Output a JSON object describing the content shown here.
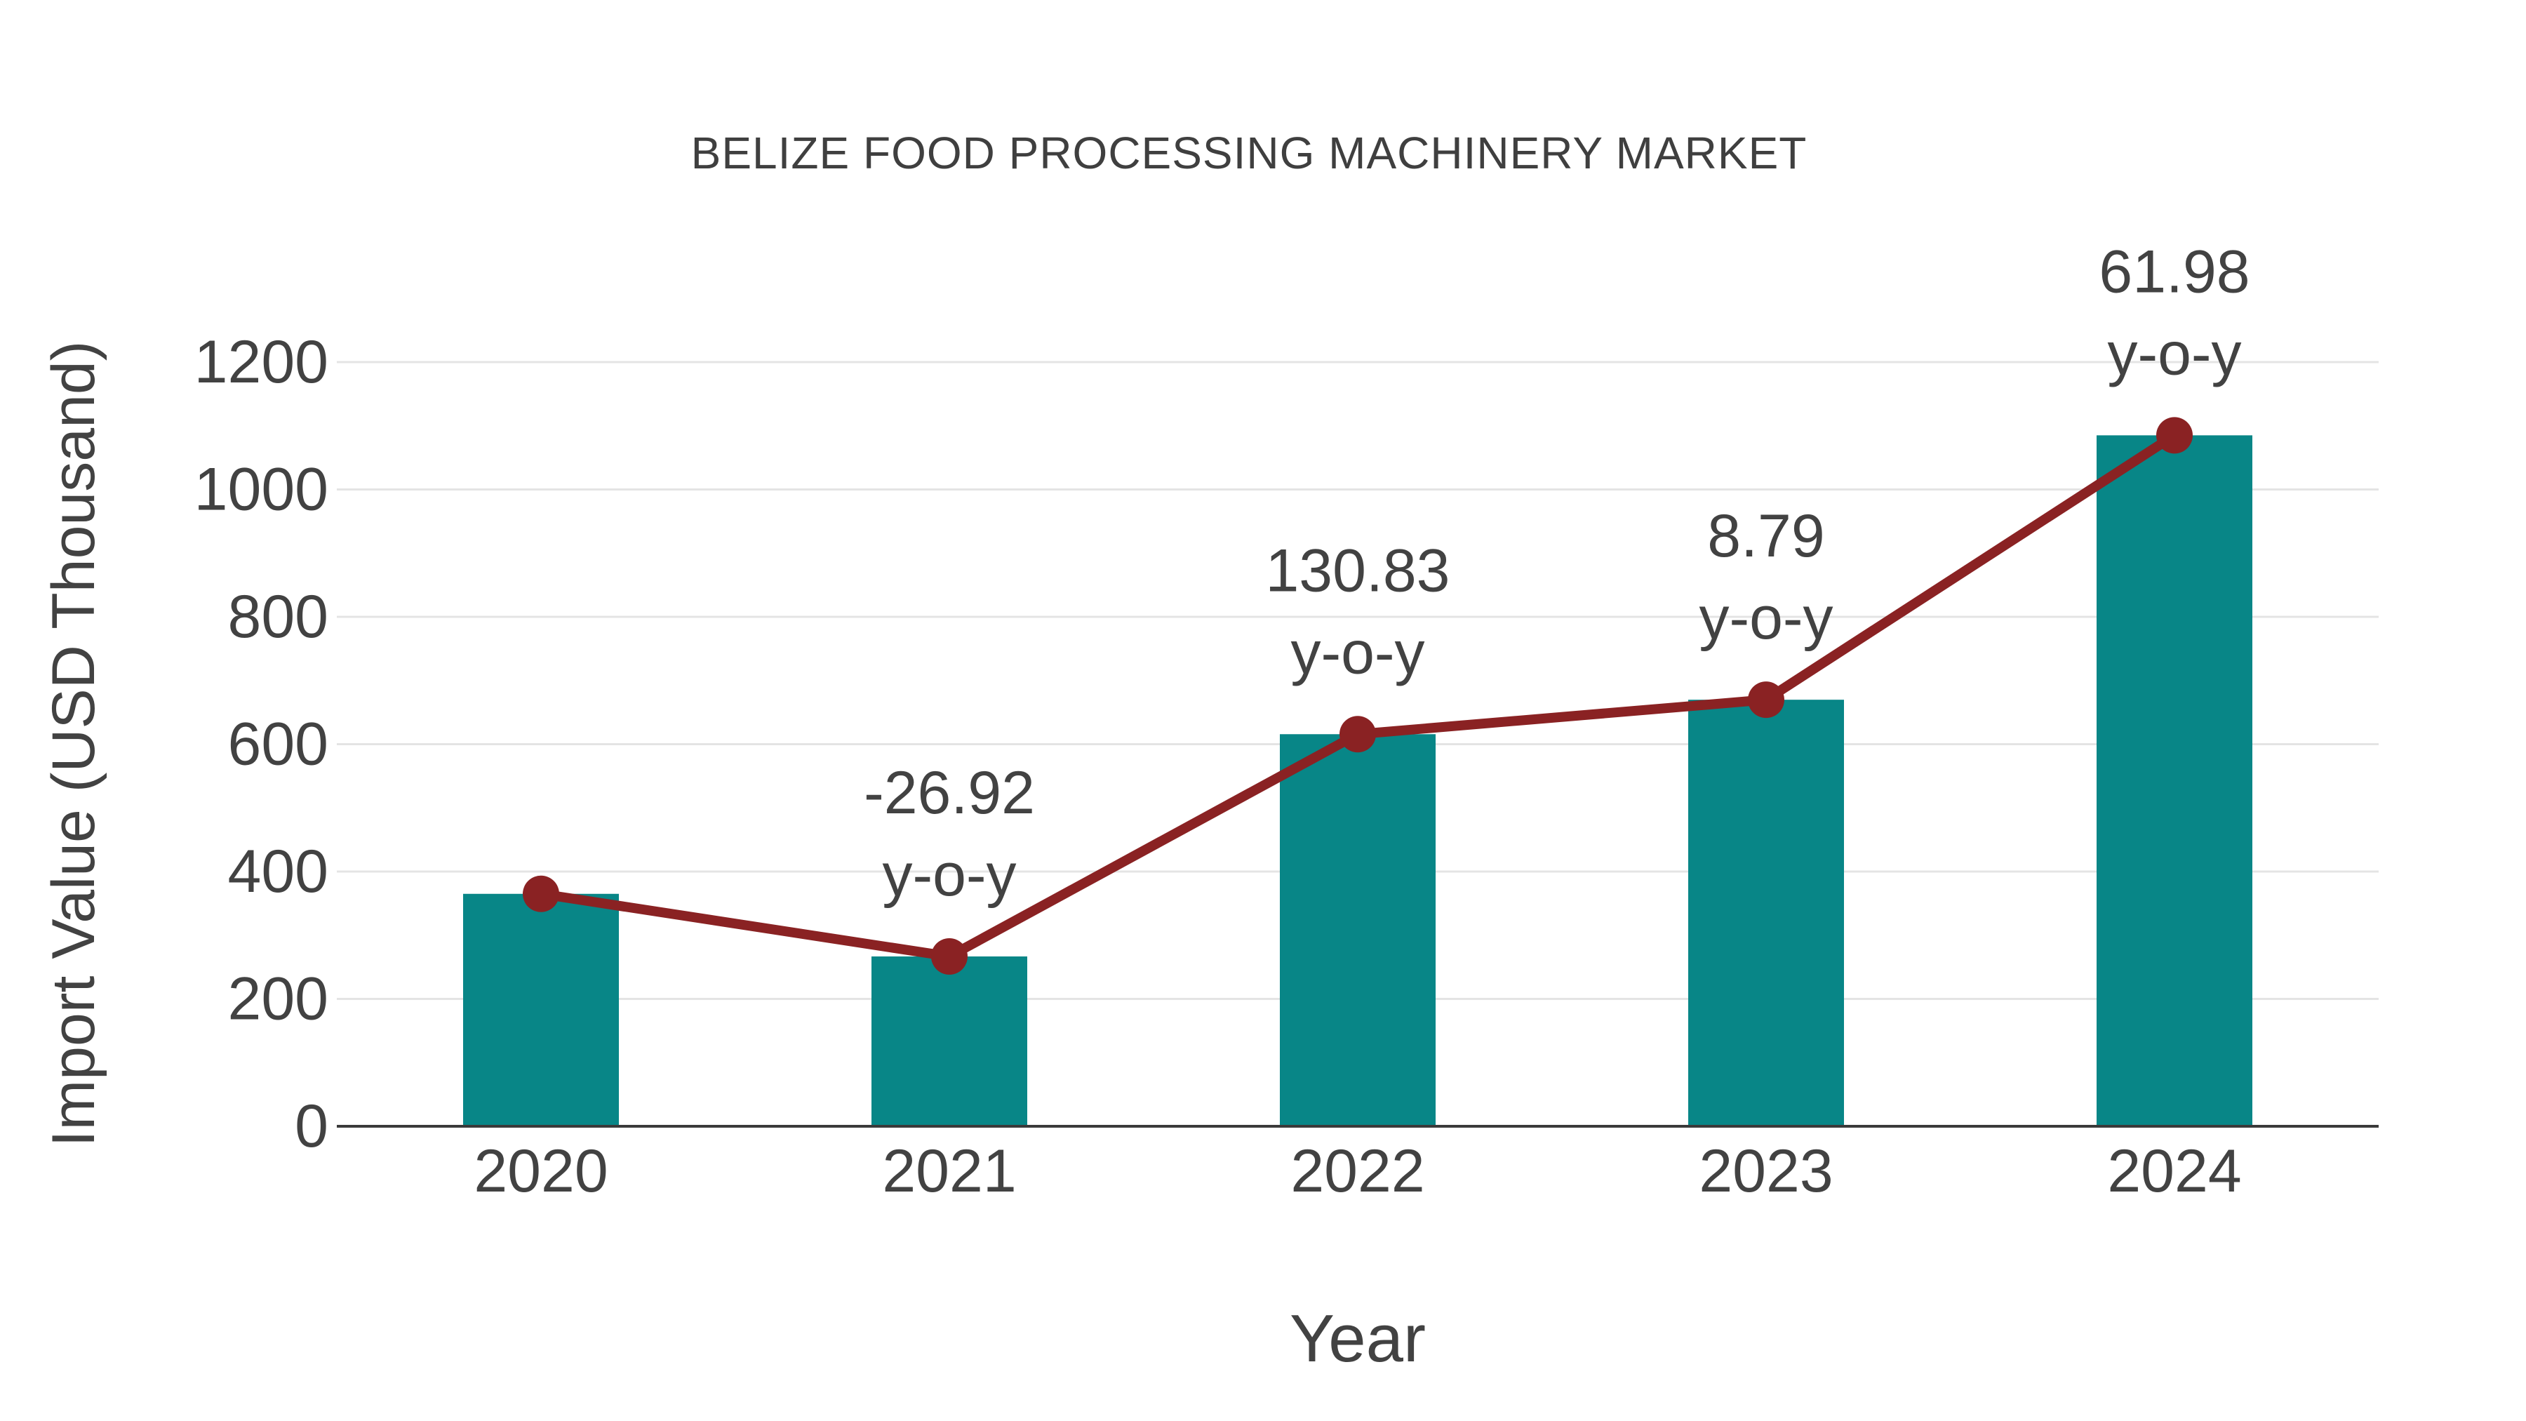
{
  "chart_data": {
    "type": "bar+line",
    "title": "BELIZE FOOD PROCESSING MACHINERY MARKET",
    "xlabel": "Year",
    "ylabel": "Import Value (USD Thousand)",
    "categories": [
      "2020",
      "2021",
      "2022",
      "2023",
      "2024"
    ],
    "series": [
      {
        "name": "Import Value bars",
        "type": "bar",
        "values": [
          365,
          266.7,
          615.7,
          669.8,
          1085
        ]
      },
      {
        "name": "Import Value trend",
        "type": "line",
        "values": [
          365,
          266.7,
          615.7,
          669.8,
          1085
        ]
      }
    ],
    "annotations": [
      null,
      {
        "category": "2021",
        "lines": [
          "-26.92",
          "y-o-y"
        ]
      },
      {
        "category": "2022",
        "lines": [
          "130.83",
          "y-o-y"
        ]
      },
      {
        "category": "2023",
        "lines": [
          "8.79",
          "y-o-y"
        ]
      },
      {
        "category": "2024",
        "lines": [
          "61.98",
          "y-o-y"
        ]
      }
    ],
    "yticks": [
      0,
      200,
      400,
      600,
      800,
      1000,
      1200
    ],
    "ylim": [
      0,
      1200
    ],
    "grid": "horizontal",
    "legend": "none",
    "colors": {
      "bar": "#088687",
      "line": "#8a2223",
      "marker": "#8a2223",
      "grid": "#e4e4e4",
      "axis": "#3a3a3a",
      "text": "#424242",
      "title": "#3f3f3f"
    }
  }
}
